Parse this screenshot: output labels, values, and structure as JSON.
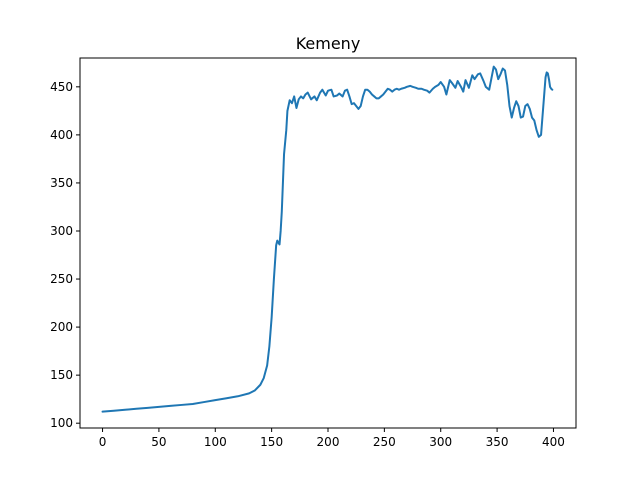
{
  "chart_data": {
    "type": "line",
    "title": "Kemeny",
    "xlabel": "",
    "ylabel": "",
    "xlim": [
      -20,
      420
    ],
    "ylim": [
      95,
      480
    ],
    "xticks": [
      0,
      50,
      100,
      150,
      200,
      250,
      300,
      350,
      400
    ],
    "yticks": [
      100,
      150,
      200,
      250,
      300,
      350,
      400,
      450
    ],
    "grid": false,
    "line_color": "#1f77b4",
    "series": [
      {
        "x": [
          0,
          10,
          20,
          30,
          40,
          50,
          60,
          70,
          80,
          90,
          100,
          110,
          120,
          130,
          135,
          140,
          143,
          146,
          148,
          150,
          152,
          154,
          155,
          157,
          158,
          159,
          161,
          163,
          164,
          166,
          168,
          170,
          172,
          174,
          176,
          178,
          180,
          182,
          185,
          188,
          190,
          193,
          195,
          198,
          200,
          203,
          205,
          208,
          210,
          213,
          215,
          217,
          219,
          221,
          223,
          225,
          227,
          229,
          231,
          233,
          235,
          237,
          239,
          241,
          243,
          245,
          247,
          249,
          251,
          253,
          255,
          257,
          259,
          261,
          263,
          265,
          268,
          270,
          273,
          275,
          278,
          280,
          283,
          285,
          288,
          290,
          293,
          295,
          298,
          300,
          303,
          305,
          308,
          310,
          313,
          315,
          318,
          320,
          322,
          325,
          328,
          330,
          333,
          335,
          338,
          340,
          343,
          345,
          347,
          349,
          351,
          353,
          355,
          357,
          359,
          361,
          363,
          365,
          367,
          369,
          371,
          373,
          375,
          377,
          379,
          381,
          383,
          385,
          387,
          389,
          391,
          392,
          393,
          394,
          395,
          396,
          397,
          398,
          399
        ],
        "y": [
          112,
          113,
          114,
          115,
          116,
          117,
          118,
          119,
          120,
          122,
          124,
          126,
          128,
          131,
          134,
          140,
          147,
          160,
          180,
          210,
          250,
          285,
          290,
          286,
          300,
          320,
          380,
          405,
          425,
          436,
          433,
          440,
          428,
          437,
          440,
          438,
          442,
          444,
          437,
          440,
          436,
          444,
          447,
          441,
          446,
          447,
          440,
          441,
          443,
          440,
          446,
          447,
          440,
          432,
          433,
          430,
          427,
          430,
          440,
          447,
          447,
          445,
          442,
          440,
          438,
          438,
          440,
          442,
          445,
          448,
          447,
          445,
          447,
          448,
          447,
          448,
          449,
          450,
          451,
          450,
          449,
          448,
          448,
          447,
          446,
          444,
          448,
          450,
          452,
          455,
          450,
          442,
          457,
          454,
          449,
          456,
          450,
          445,
          457,
          449,
          462,
          458,
          463,
          464,
          456,
          450,
          447,
          459,
          471,
          468,
          458,
          463,
          469,
          467,
          452,
          430,
          418,
          428,
          435,
          430,
          418,
          419,
          430,
          432,
          427,
          418,
          415,
          405,
          398,
          400,
          430,
          445,
          460,
          465,
          464,
          458,
          450,
          448,
          447
        ]
      }
    ]
  }
}
